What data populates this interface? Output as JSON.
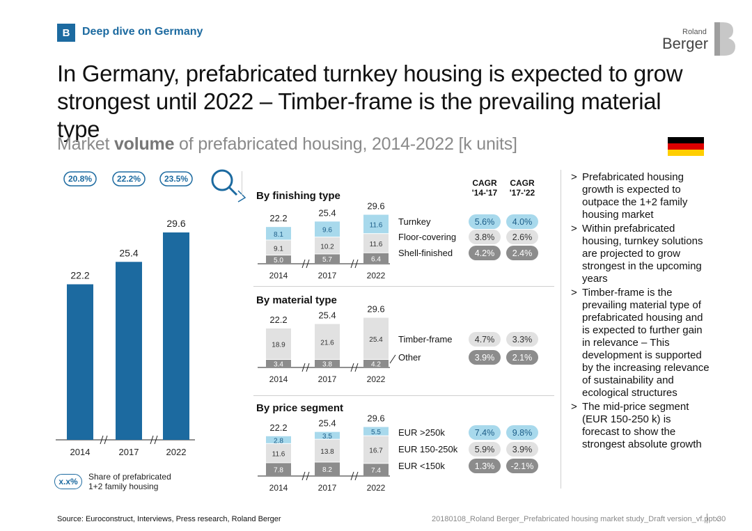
{
  "header": {
    "badge": "B",
    "section": "Deep dive on Germany",
    "logo_small": "Roland",
    "logo_big": "Berger"
  },
  "title": "In Germany, prefabricated turnkey housing is expected to grow strongest until 2022 – Timber-frame is the prevailing material type",
  "subtitle": {
    "pre": "Market ",
    "bold": "volume",
    "post": " of prefabricated housing, 2014-2022 [k units]"
  },
  "flag_colors": [
    "#000000",
    "#dd0000",
    "#ffce00"
  ],
  "colors": {
    "bar_blue": "#1c6aa0",
    "light_blue": "#a8d9ec",
    "light_grey": "#e1e1e1",
    "dark_grey": "#8c8c8c"
  },
  "chart_data": [
    {
      "type": "bar",
      "title": "",
      "categories": [
        "2014",
        "2017",
        "2022"
      ],
      "values": [
        22.2,
        25.4,
        29.6
      ],
      "share_labels": [
        "20.8%",
        "22.2%",
        "23.5%"
      ],
      "share_legend": {
        "marker": "x.x%",
        "text": "Share of prefabricated 1+2 family housing"
      }
    },
    {
      "type": "bar",
      "stacked": true,
      "title": "By finishing type",
      "categories": [
        "2014",
        "2017",
        "2022"
      ],
      "totals": [
        22.2,
        25.4,
        29.6
      ],
      "series": [
        {
          "name": "Shell-finished",
          "values": [
            5.0,
            5.7,
            6.4
          ],
          "cagr_14_17": "4.2%",
          "cagr_17_22": "2.4%"
        },
        {
          "name": "Floor-covering",
          "values": [
            9.1,
            10.2,
            11.6
          ],
          "cagr_14_17": "3.8%",
          "cagr_17_22": "2.6%"
        },
        {
          "name": "Turnkey",
          "values": [
            8.1,
            9.6,
            11.6
          ],
          "cagr_14_17": "5.6%",
          "cagr_17_22": "4.0%"
        }
      ]
    },
    {
      "type": "bar",
      "stacked": true,
      "title": "By material type",
      "categories": [
        "2014",
        "2017",
        "2022"
      ],
      "totals": [
        22.2,
        25.4,
        29.6
      ],
      "series": [
        {
          "name": "Other",
          "values": [
            3.4,
            3.8,
            4.2
          ],
          "cagr_14_17": "3.9%",
          "cagr_17_22": "2.1%"
        },
        {
          "name": "Timber-frame",
          "values": [
            18.9,
            21.6,
            25.4
          ],
          "cagr_14_17": "4.7%",
          "cagr_17_22": "3.3%"
        }
      ]
    },
    {
      "type": "bar",
      "stacked": true,
      "title": "By price segment",
      "categories": [
        "2014",
        "2017",
        "2022"
      ],
      "totals": [
        22.2,
        25.4,
        29.6
      ],
      "series": [
        {
          "name": "EUR <150k",
          "values": [
            7.8,
            8.2,
            7.4
          ],
          "cagr_14_17": "1.3%",
          "cagr_17_22": "-2.1%"
        },
        {
          "name": "EUR 150-250k",
          "values": [
            11.6,
            13.8,
            16.7
          ],
          "cagr_14_17": "5.9%",
          "cagr_17_22": "3.9%"
        },
        {
          "name": "EUR >250k",
          "values": [
            2.8,
            3.5,
            5.5
          ],
          "cagr_14_17": "7.4%",
          "cagr_17_22": "9.8%"
        }
      ]
    }
  ],
  "cagr_headers": [
    "CAGR '14-'17",
    "CAGR '17-'22"
  ],
  "bullets": [
    "Prefabricated housing growth is expected to outpace the 1+2 family housing market",
    "Within prefabricated housing, turnkey solutions are projected to grow strongest in the upcoming years",
    "Timber-frame is the prevailing material type of prefabricated housing and is expected to further gain in relevance – This development is supported by the increasing relevance of sustainability and ecological structures",
    "The mid-price segment (EUR 150-250 k) is forecast to show the strongest absolute growth"
  ],
  "bullet_marker": ">",
  "footer": {
    "source": "Source: Euroconstruct, Interviews, Press research, Roland Berger",
    "file": "20180108_Roland Berger_Prefabricated housing market study_Draft version_vf.pptx",
    "page": "30"
  }
}
